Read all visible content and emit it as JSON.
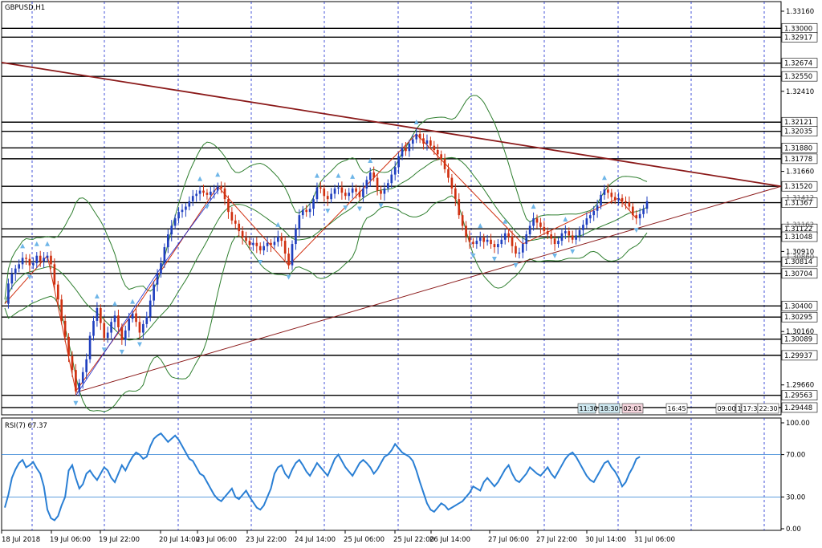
{
  "symbol_label": "GBPUSD,H1",
  "rsi_label": "RSI(7) 67.37",
  "colors": {
    "bull": "#1f3fbf",
    "bear": "#d03010",
    "band": "#2f7f2f",
    "trend": "#8b1a1a",
    "rsi_line": "#2a7fd4",
    "grid": "#1a2bd0",
    "arrow": "#6fb6e8"
  },
  "chart_data": [
    {
      "type": "candlestick",
      "title": "GBPUSD,H1",
      "ylim": [
        1.2938,
        1.3325
      ],
      "price_ticks": [
        "1.33160",
        "1.32410",
        "1.31660",
        "1.30910",
        "1.30160",
        "1.29660"
      ],
      "faint_ticks": [
        "1.31412",
        "1.31162",
        "1.30860"
      ],
      "levels": [
        {
          "label": "1.33000",
          "value": 1.33
        },
        {
          "label": "1.32917",
          "value": 1.32917
        },
        {
          "label": "1.32674",
          "value": 1.32674
        },
        {
          "label": "1.32550",
          "value": 1.3255
        },
        {
          "label": "1.32121",
          "value": 1.32121
        },
        {
          "label": "1.32035",
          "value": 1.32035
        },
        {
          "label": "1.31880",
          "value": 1.3188
        },
        {
          "label": "1.31778",
          "value": 1.31778
        },
        {
          "label": "1.31520",
          "value": 1.3152
        },
        {
          "label": "1.31367",
          "value": 1.31367
        },
        {
          "label": "1.31122",
          "value": 1.31122
        },
        {
          "label": "1.31048",
          "value": 1.31048
        },
        {
          "label": "1.30814",
          "value": 1.30814
        },
        {
          "label": "1.30704",
          "value": 1.30704
        },
        {
          "label": "1.30400",
          "value": 1.304
        },
        {
          "label": "1.30295",
          "value": 1.30295
        },
        {
          "label": "1.30089",
          "value": 1.30089
        },
        {
          "label": "1.29937",
          "value": 1.29937
        },
        {
          "label": "1.29563",
          "value": 1.29563
        },
        {
          "label": "1.29448",
          "value": 1.29448
        }
      ],
      "session_labels": [
        "11:30",
        "18:30",
        "02:01",
        "16:45",
        "09:00",
        "1",
        "17:3",
        "22:30"
      ],
      "x_labels": [
        "18 Jul 2018",
        "19 Jul 06:00",
        "19 Jul 22:00",
        "20 Jul 14:00",
        "23 Jul 06:00",
        "23 Jul 22:00",
        "24 Jul 14:00",
        "25 Jul 06:00",
        "25 Jul 22:00",
        "26 Jul 14:00",
        "27 Jul 06:00",
        "27 Jul 22:00",
        "30 Jul 14:00",
        "31 Jul 06:00"
      ],
      "closes": [
        1.3042,
        1.3061,
        1.307,
        1.3075,
        1.3079,
        1.3085,
        1.3084,
        1.3078,
        1.308,
        1.3087,
        1.3082,
        1.3085,
        1.3087,
        1.3079,
        1.306,
        1.3046,
        1.3026,
        1.3011,
        1.2993,
        1.298,
        1.296,
        1.2968,
        1.2978,
        1.299,
        1.3012,
        1.3026,
        1.3038,
        1.3024,
        1.301,
        1.3015,
        1.3025,
        1.3031,
        1.302,
        1.3008,
        1.3017,
        1.3028,
        1.3033,
        1.3025,
        1.3015,
        1.3023,
        1.303,
        1.3045,
        1.306,
        1.307,
        1.308,
        1.3095,
        1.3107,
        1.3115,
        1.3122,
        1.3128,
        1.313,
        1.3133,
        1.3138,
        1.3143,
        1.3145,
        1.3148,
        1.3146,
        1.3144,
        1.3147,
        1.3148,
        1.3152,
        1.315,
        1.314,
        1.3128,
        1.312,
        1.3117,
        1.311,
        1.3104,
        1.3101,
        1.3097,
        1.3099,
        1.3096,
        1.3092,
        1.3096,
        1.3099,
        1.3097,
        1.31,
        1.3105,
        1.3101,
        1.3089,
        1.3078,
        1.3098,
        1.3112,
        1.3125,
        1.313,
        1.3128,
        1.3131,
        1.314,
        1.3151,
        1.315,
        1.3143,
        1.314,
        1.3145,
        1.315,
        1.3151,
        1.3146,
        1.3143,
        1.3146,
        1.315,
        1.3147,
        1.3142,
        1.315,
        1.3158,
        1.3165,
        1.316,
        1.3148,
        1.3145,
        1.315,
        1.3155,
        1.3163,
        1.317,
        1.318,
        1.3188,
        1.3185,
        1.3192,
        1.3196,
        1.3201,
        1.3197,
        1.3192,
        1.3195,
        1.319,
        1.3186,
        1.3182,
        1.3178,
        1.3168,
        1.316,
        1.315,
        1.314,
        1.3125,
        1.3115,
        1.3105,
        1.31,
        1.3098,
        1.3101,
        1.3104,
        1.31,
        1.3102,
        1.3098,
        1.3095,
        1.3098,
        1.3102,
        1.3108,
        1.3105,
        1.3096,
        1.3089,
        1.309,
        1.3098,
        1.3107,
        1.3115,
        1.3122,
        1.3118,
        1.3114,
        1.311,
        1.3107,
        1.3103,
        1.3098,
        1.3101,
        1.3108,
        1.311,
        1.3106,
        1.3102,
        1.3106,
        1.3111,
        1.3116,
        1.3122,
        1.3125,
        1.3129,
        1.3134,
        1.3144,
        1.3149,
        1.3146,
        1.3142,
        1.3139,
        1.3141,
        1.3138,
        1.3137,
        1.3133,
        1.3125,
        1.3122,
        1.3126,
        1.3131,
        1.3138
      ],
      "rsi": {
        "ylim": [
          0,
          100
        ],
        "ticks": [
          "100.00",
          "70.00",
          "30.00",
          "0.00"
        ],
        "levels": [
          70,
          30
        ],
        "values": [
          20,
          32,
          48,
          56,
          62,
          65,
          58,
          60,
          63,
          57,
          52,
          40,
          18,
          10,
          8,
          12,
          22,
          30,
          55,
          60,
          48,
          38,
          42,
          52,
          55,
          50,
          46,
          52,
          58,
          55,
          48,
          44,
          52,
          60,
          55,
          62,
          68,
          72,
          70,
          66,
          68,
          78,
          85,
          88,
          90,
          86,
          82,
          85,
          88,
          84,
          78,
          72,
          66,
          64,
          58,
          52,
          50,
          44,
          38,
          32,
          28,
          26,
          30,
          34,
          38,
          30,
          28,
          32,
          36,
          30,
          25,
          20,
          18,
          22,
          30,
          38,
          52,
          58,
          60,
          52,
          48,
          56,
          62,
          65,
          60,
          54,
          50,
          56,
          62,
          58,
          54,
          50,
          58,
          66,
          70,
          64,
          58,
          54,
          50,
          56,
          62,
          65,
          62,
          58,
          52,
          56,
          62,
          68,
          70,
          74,
          80,
          76,
          72,
          70,
          68,
          64,
          55,
          44,
          34,
          24,
          18,
          16,
          20,
          24,
          22,
          18,
          20,
          22,
          24,
          26,
          30,
          34,
          40,
          38,
          36,
          44,
          48,
          44,
          40,
          44,
          50,
          56,
          60,
          52,
          46,
          44,
          48,
          52,
          58,
          55,
          52,
          50,
          54,
          58,
          52,
          48,
          54,
          60,
          66,
          70,
          72,
          68,
          62,
          56,
          50,
          46,
          44,
          50,
          56,
          62,
          64,
          58,
          54,
          48,
          40,
          44,
          52,
          58,
          66,
          68
        ]
      }
    }
  ]
}
